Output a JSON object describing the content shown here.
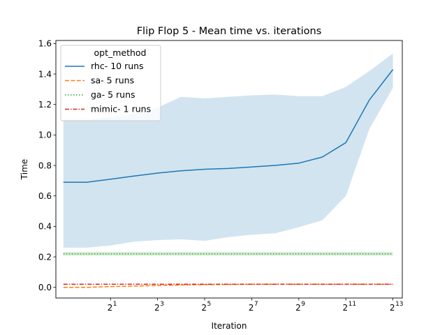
{
  "chart_data": {
    "type": "line",
    "title": "Flip Flop 5 - Mean time vs. iterations",
    "xlabel": "Iteration",
    "ylabel": "Time",
    "xscale": "log2",
    "xlim": [
      0.4,
      10800
    ],
    "ylim": [
      -0.07,
      1.62
    ],
    "xticks": [
      {
        "value": 2,
        "base": "2",
        "exp": "1"
      },
      {
        "value": 8,
        "base": "2",
        "exp": "3"
      },
      {
        "value": 32,
        "base": "2",
        "exp": "5"
      },
      {
        "value": 128,
        "base": "2",
        "exp": "7"
      },
      {
        "value": 512,
        "base": "2",
        "exp": "9"
      },
      {
        "value": 2048,
        "base": "2",
        "exp": "11"
      },
      {
        "value": 8192,
        "base": "2",
        "exp": "13"
      }
    ],
    "yticks": [
      {
        "value": 0.0,
        "label": "0.0"
      },
      {
        "value": 0.2,
        "label": "0.2"
      },
      {
        "value": 0.4,
        "label": "0.4"
      },
      {
        "value": 0.6,
        "label": "0.6"
      },
      {
        "value": 0.8,
        "label": "0.8"
      },
      {
        "value": 1.0,
        "label": "1.0"
      },
      {
        "value": 1.2,
        "label": "1.2"
      },
      {
        "value": 1.4,
        "label": "1.4"
      },
      {
        "value": 1.6,
        "label": "1.6"
      }
    ],
    "grid": false,
    "legend": {
      "title": "opt_method",
      "placement": "upper-left"
    },
    "x": [
      0.5,
      1,
      2,
      4,
      8,
      16,
      32,
      64,
      128,
      256,
      512,
      1024,
      2048,
      4096,
      8192
    ],
    "series": [
      {
        "name": "rhc- 10 runs",
        "color": "#1f77b4",
        "dash": "solid",
        "values": [
          0.69,
          0.69,
          0.71,
          0.73,
          0.75,
          0.765,
          0.775,
          0.78,
          0.79,
          0.8,
          0.815,
          0.855,
          0.95,
          1.23,
          1.43
        ],
        "ci_low": [
          0.26,
          0.26,
          0.275,
          0.3,
          0.31,
          0.315,
          0.305,
          0.33,
          0.345,
          0.355,
          0.395,
          0.44,
          0.6,
          1.04,
          1.31
        ],
        "ci_high": [
          1.1,
          1.1,
          1.12,
          1.14,
          1.18,
          1.25,
          1.24,
          1.25,
          1.26,
          1.265,
          1.255,
          1.255,
          1.315,
          1.42,
          1.535
        ]
      },
      {
        "name": "sa- 5 runs",
        "color": "#ff7f0e",
        "dash": "dashed",
        "values": [
          0.0,
          0.0,
          0.005,
          0.008,
          0.012,
          0.015,
          0.018,
          0.019,
          0.02,
          0.02,
          0.02,
          0.02,
          0.02,
          0.02,
          0.02
        ]
      },
      {
        "name": "ga- 5 runs",
        "color": "#2ca02c",
        "dash": "dotted",
        "values": [
          0.22,
          0.22,
          0.22,
          0.22,
          0.22,
          0.22,
          0.22,
          0.22,
          0.22,
          0.22,
          0.22,
          0.22,
          0.22,
          0.22,
          0.22
        ],
        "ci_low": [
          0.208,
          0.208,
          0.208,
          0.208,
          0.208,
          0.208,
          0.208,
          0.208,
          0.208,
          0.208,
          0.208,
          0.208,
          0.208,
          0.208,
          0.208
        ],
        "ci_high": [
          0.232,
          0.232,
          0.232,
          0.232,
          0.232,
          0.232,
          0.232,
          0.232,
          0.232,
          0.232,
          0.232,
          0.232,
          0.232,
          0.232,
          0.232
        ]
      },
      {
        "name": "mimic- 1 runs",
        "color": "#d62728",
        "dash": "dashdot",
        "values": [
          0.02,
          0.02,
          0.02,
          0.02,
          0.02,
          0.02,
          0.02,
          0.02,
          0.02,
          0.02,
          0.02,
          0.02,
          0.02,
          0.02,
          0.02
        ]
      }
    ]
  }
}
